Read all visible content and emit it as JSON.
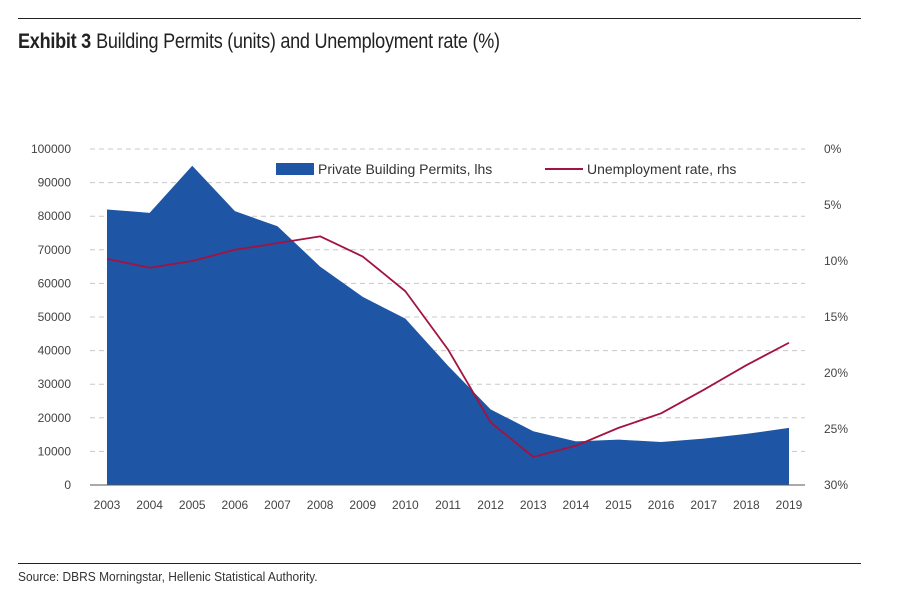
{
  "header": {
    "exhibit_label": "Exhibit 3",
    "title": "Building Permits (units) and Unemployment rate (%)"
  },
  "footer": {
    "source": "Source: DBRS Morningstar, Hellenic Statistical Authority."
  },
  "chart_data": {
    "type": "area",
    "x": [
      2003,
      2004,
      2005,
      2006,
      2007,
      2008,
      2009,
      2010,
      2011,
      2012,
      2013,
      2014,
      2015,
      2016,
      2017,
      2018,
      2019
    ],
    "x_tick_labels": [
      "2003",
      "2004",
      "2005",
      "2006",
      "2007",
      "2008",
      "2009",
      "2010",
      "2011",
      "2012",
      "2013",
      "2014",
      "2015",
      "2016",
      "2017",
      "2018",
      "2019"
    ],
    "series": [
      {
        "name": "Private Building Permits, lhs",
        "type": "area",
        "axis": "left",
        "color": "#1f55a5",
        "values": [
          82000,
          81000,
          95000,
          81500,
          77000,
          65000,
          56000,
          49500,
          35500,
          22500,
          16000,
          13000,
          13500,
          12800,
          13800,
          15200,
          17000
        ]
      },
      {
        "name": "Unemployment rate, rhs",
        "type": "line",
        "axis": "right",
        "color": "#a3133f",
        "values": [
          9.8,
          10.6,
          10.0,
          9.0,
          8.4,
          7.8,
          9.6,
          12.7,
          17.9,
          24.4,
          27.5,
          26.5,
          24.9,
          23.6,
          21.5,
          19.3,
          17.3
        ]
      }
    ],
    "y_left": {
      "ylim": [
        0,
        100000
      ],
      "ticks": [
        0,
        10000,
        20000,
        30000,
        40000,
        50000,
        60000,
        70000,
        80000,
        90000,
        100000
      ],
      "tick_labels": [
        "0",
        "10000",
        "20000",
        "30000",
        "40000",
        "50000",
        "60000",
        "70000",
        "80000",
        "90000",
        "100000"
      ]
    },
    "y_right": {
      "ylim": [
        0,
        30
      ],
      "inverted": true,
      "ticks": [
        0,
        5,
        10,
        15,
        20,
        25,
        30
      ],
      "tick_labels": [
        "0%",
        "5%",
        "10%",
        "15%",
        "20%",
        "25%",
        "30%"
      ]
    },
    "grid": true,
    "legend_placement": "top"
  }
}
